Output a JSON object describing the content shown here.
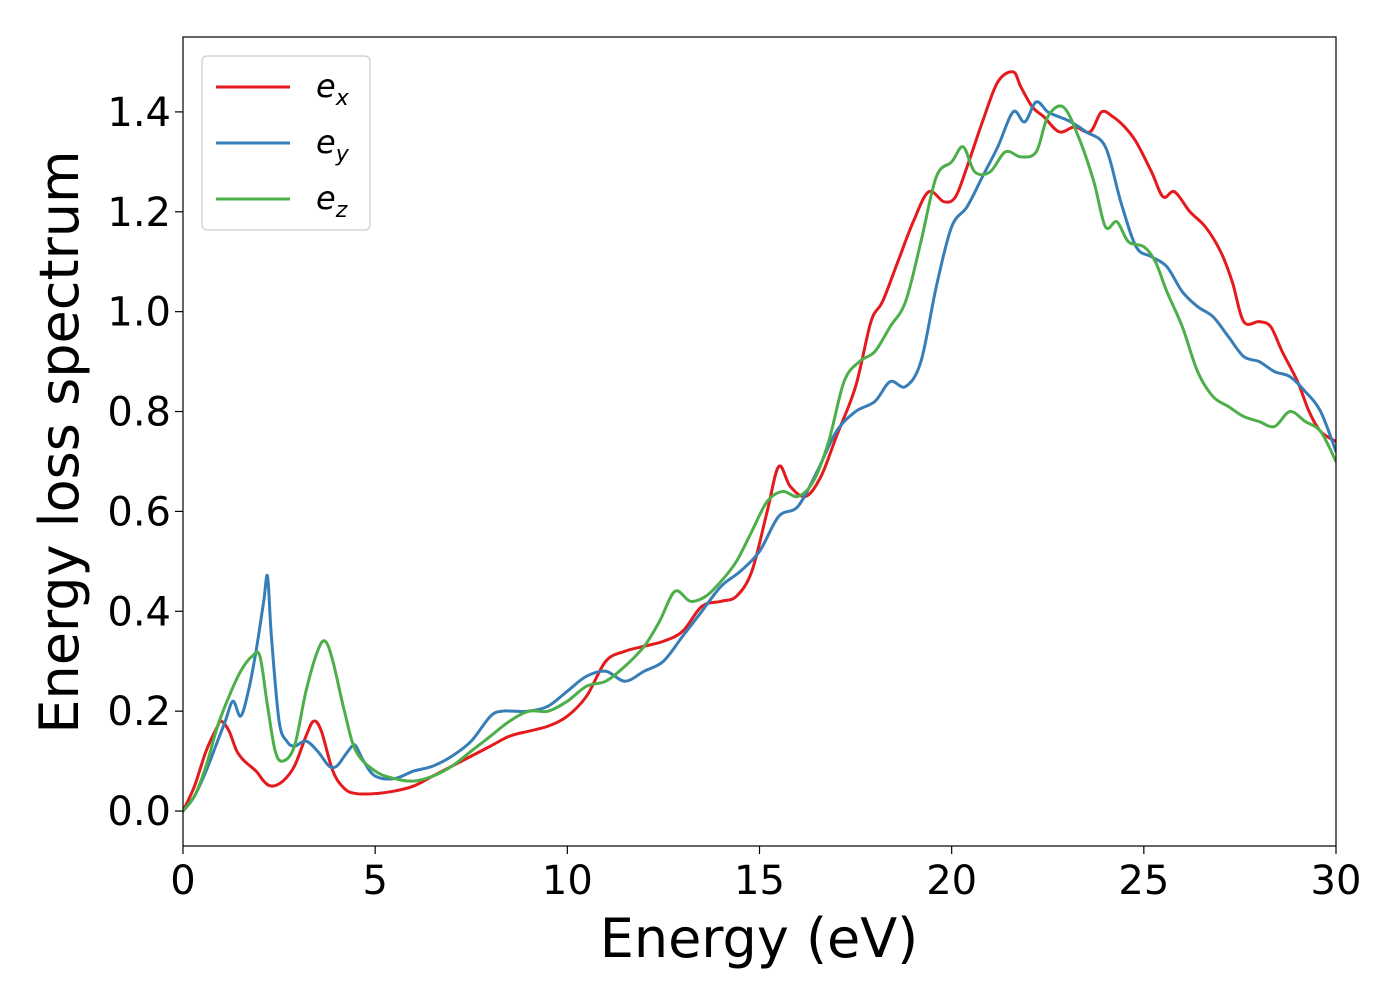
{
  "chart_data": {
    "type": "line",
    "xlabel": "Energy (eV)",
    "ylabel": "Energy loss spectrum",
    "xlim": [
      0,
      30
    ],
    "ylim": [
      -0.07,
      1.55
    ],
    "xticks": [
      0,
      5,
      10,
      15,
      20,
      25,
      30
    ],
    "yticks": [
      0.0,
      0.2,
      0.4,
      0.6,
      0.8,
      1.0,
      1.2,
      1.4
    ],
    "xtick_labels": [
      "0",
      "5",
      "10",
      "15",
      "20",
      "25",
      "30"
    ],
    "ytick_labels": [
      "0.0",
      "0.2",
      "0.4",
      "0.6",
      "0.8",
      "1.0",
      "1.2",
      "1.4"
    ],
    "grid": false,
    "legend": "top-left",
    "series": [
      {
        "name": "e_x",
        "label_base": "e",
        "label_sub": "x",
        "color": "#e41a1c",
        "x": [
          0,
          0.3,
          0.6,
          0.9,
          1.0,
          1.2,
          1.4,
          1.6,
          1.9,
          2.1,
          2.3,
          2.6,
          2.9,
          3.2,
          3.4,
          3.6,
          3.9,
          4.2,
          4.5,
          5.0,
          5.5,
          6.0,
          6.5,
          7.0,
          7.5,
          8.0,
          8.5,
          9.0,
          9.5,
          10.0,
          10.5,
          11.0,
          11.5,
          12.0,
          12.5,
          13.0,
          13.5,
          14.0,
          14.4,
          14.8,
          15.2,
          15.5,
          15.8,
          16.2,
          16.6,
          17.0,
          17.5,
          17.9,
          18.2,
          18.6,
          19.0,
          19.4,
          19.8,
          20.1,
          20.4,
          20.8,
          21.2,
          21.6,
          21.8,
          22.1,
          22.4,
          22.8,
          23.2,
          23.6,
          23.9,
          24.2,
          24.5,
          24.8,
          25.2,
          25.5,
          25.8,
          26.2,
          26.6,
          27.0,
          27.3,
          27.6,
          28.0,
          28.3,
          28.6,
          29.0,
          29.3,
          29.6,
          30.0
        ],
        "y": [
          0.0,
          0.05,
          0.12,
          0.17,
          0.18,
          0.16,
          0.12,
          0.1,
          0.08,
          0.06,
          0.05,
          0.06,
          0.09,
          0.15,
          0.18,
          0.16,
          0.08,
          0.045,
          0.035,
          0.035,
          0.04,
          0.05,
          0.07,
          0.09,
          0.11,
          0.13,
          0.15,
          0.16,
          0.17,
          0.19,
          0.23,
          0.3,
          0.32,
          0.33,
          0.34,
          0.36,
          0.41,
          0.42,
          0.43,
          0.48,
          0.6,
          0.69,
          0.65,
          0.63,
          0.67,
          0.75,
          0.85,
          0.98,
          1.02,
          1.1,
          1.18,
          1.24,
          1.22,
          1.23,
          1.29,
          1.38,
          1.46,
          1.48,
          1.45,
          1.41,
          1.39,
          1.36,
          1.37,
          1.36,
          1.4,
          1.39,
          1.37,
          1.34,
          1.28,
          1.23,
          1.24,
          1.2,
          1.17,
          1.12,
          1.06,
          0.98,
          0.98,
          0.97,
          0.92,
          0.86,
          0.8,
          0.76,
          0.74
        ]
      },
      {
        "name": "e_y",
        "label_base": "e",
        "label_sub": "y",
        "color": "#377eb8",
        "x": [
          0,
          0.3,
          0.6,
          0.9,
          1.1,
          1.3,
          1.5,
          1.7,
          1.9,
          2.1,
          2.2,
          2.3,
          2.5,
          2.7,
          2.9,
          3.2,
          3.5,
          3.8,
          4.0,
          4.2,
          4.4,
          4.5,
          4.7,
          5.0,
          5.5,
          6.0,
          6.5,
          7.0,
          7.5,
          8.0,
          8.3,
          8.6,
          9.0,
          9.5,
          10.0,
          10.5,
          11.0,
          11.5,
          12.0,
          12.5,
          13.0,
          13.5,
          14.0,
          14.5,
          15.0,
          15.5,
          16.0,
          16.5,
          17.0,
          17.5,
          18.0,
          18.4,
          18.8,
          19.2,
          19.6,
          20.0,
          20.4,
          20.8,
          21.2,
          21.6,
          21.9,
          22.2,
          22.5,
          22.8,
          23.1,
          23.5,
          24.0,
          24.4,
          24.8,
          25.2,
          25.6,
          26.0,
          26.4,
          26.8,
          27.2,
          27.6,
          28.0,
          28.4,
          28.8,
          29.2,
          29.6,
          30.0
        ],
        "y": [
          0.0,
          0.03,
          0.08,
          0.14,
          0.18,
          0.22,
          0.19,
          0.24,
          0.32,
          0.42,
          0.47,
          0.35,
          0.18,
          0.14,
          0.13,
          0.14,
          0.12,
          0.09,
          0.09,
          0.11,
          0.13,
          0.13,
          0.1,
          0.07,
          0.065,
          0.08,
          0.09,
          0.11,
          0.14,
          0.19,
          0.2,
          0.2,
          0.2,
          0.21,
          0.24,
          0.27,
          0.28,
          0.26,
          0.28,
          0.3,
          0.35,
          0.4,
          0.45,
          0.48,
          0.52,
          0.59,
          0.61,
          0.68,
          0.76,
          0.8,
          0.82,
          0.86,
          0.85,
          0.9,
          1.05,
          1.17,
          1.21,
          1.27,
          1.33,
          1.4,
          1.38,
          1.42,
          1.4,
          1.39,
          1.38,
          1.36,
          1.33,
          1.22,
          1.13,
          1.11,
          1.09,
          1.04,
          1.01,
          0.99,
          0.95,
          0.91,
          0.9,
          0.88,
          0.87,
          0.84,
          0.8,
          0.72
        ]
      },
      {
        "name": "e_z",
        "label_base": "e",
        "label_sub": "z",
        "color": "#4daf4a",
        "x": [
          0,
          0.3,
          0.6,
          0.9,
          1.2,
          1.5,
          1.8,
          2.0,
          2.2,
          2.4,
          2.6,
          2.9,
          3.2,
          3.5,
          3.7,
          3.9,
          4.2,
          4.5,
          5.0,
          5.5,
          6.0,
          6.5,
          7.0,
          7.5,
          8.0,
          8.5,
          9.0,
          9.5,
          10.0,
          10.5,
          11.0,
          11.5,
          12.0,
          12.4,
          12.8,
          13.2,
          13.6,
          14.0,
          14.4,
          14.8,
          15.2,
          15.6,
          16.0,
          16.4,
          16.8,
          17.2,
          17.6,
          18.0,
          18.4,
          18.8,
          19.2,
          19.6,
          20.0,
          20.3,
          20.6,
          21.0,
          21.4,
          21.8,
          22.2,
          22.5,
          22.9,
          23.3,
          23.7,
          24.0,
          24.3,
          24.6,
          25.0,
          25.3,
          25.6,
          26.0,
          26.4,
          26.8,
          27.2,
          27.6,
          28.0,
          28.4,
          28.8,
          29.2,
          29.6,
          30.0
        ],
        "y": [
          0.0,
          0.03,
          0.09,
          0.17,
          0.23,
          0.28,
          0.31,
          0.31,
          0.21,
          0.12,
          0.1,
          0.13,
          0.24,
          0.32,
          0.34,
          0.3,
          0.2,
          0.12,
          0.08,
          0.065,
          0.06,
          0.07,
          0.09,
          0.12,
          0.15,
          0.18,
          0.2,
          0.2,
          0.22,
          0.25,
          0.26,
          0.29,
          0.33,
          0.38,
          0.44,
          0.42,
          0.43,
          0.46,
          0.5,
          0.56,
          0.62,
          0.64,
          0.63,
          0.66,
          0.74,
          0.86,
          0.9,
          0.92,
          0.97,
          1.02,
          1.14,
          1.27,
          1.3,
          1.33,
          1.28,
          1.28,
          1.32,
          1.31,
          1.32,
          1.39,
          1.41,
          1.35,
          1.26,
          1.17,
          1.18,
          1.14,
          1.13,
          1.1,
          1.04,
          0.97,
          0.88,
          0.83,
          0.81,
          0.79,
          0.78,
          0.77,
          0.8,
          0.78,
          0.76,
          0.7
        ]
      }
    ]
  }
}
